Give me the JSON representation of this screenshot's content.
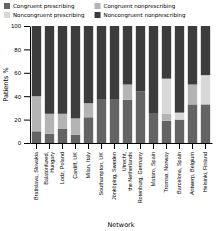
{
  "chart_data": {
    "type": "bar",
    "stacked": true,
    "categories": [
      "Bratislava, Slovakia",
      "Balatonfured,\nHungary",
      "Lodz, Poland",
      "Cardiff, UK",
      "Milan, Italy",
      "Southampton, UK",
      "Jönköping, Sweden",
      "Utrecht,\nthe Netherlands",
      "Rotenburg, Germany",
      "Mataro, Spain",
      "Tromsø, Norway",
      "Barcelona, Spain",
      "Antwerp, Belgium",
      "Helsinki, Finland"
    ],
    "series": [
      {
        "name": "Congruent prescribing",
        "color": "#646464",
        "values": [
          10,
          8,
          12,
          7,
          22,
          37,
          37,
          37,
          44,
          25,
          19,
          20,
          33,
          33
        ]
      },
      {
        "name": "Congruent nonprescribing",
        "color": "#b4b4b4",
        "values": [
          30,
          17,
          13,
          14,
          12,
          0,
          0,
          13,
          0,
          0,
          6,
          0,
          17,
          0
        ]
      },
      {
        "name": "Noncongruent prescribing",
        "color": "#d8d8d8",
        "values": [
          0,
          0,
          0,
          0,
          0,
          0,
          0,
          0,
          0,
          0,
          30,
          6,
          0,
          25
        ]
      },
      {
        "name": "Noncongruent nonprescribing",
        "color": "#3c3c3c",
        "values": [
          60,
          75,
          75,
          79,
          66,
          63,
          63,
          50,
          56,
          75,
          45,
          74,
          50,
          42
        ]
      }
    ],
    "xlabel": "Network",
    "ylabel": "Patients %",
    "ylim": [
      0,
      100
    ],
    "yticks": [
      0,
      20,
      40,
      60,
      80,
      100
    ],
    "legend": "top"
  }
}
